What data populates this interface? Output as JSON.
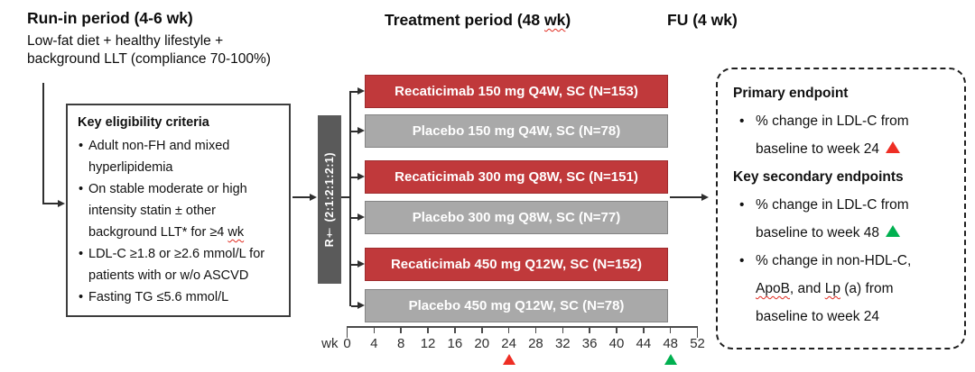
{
  "colors": {
    "treatment_bar": "#c0393b",
    "placebo_bar": "#a9a9a9",
    "randomization_box": "#5a5a5a",
    "week24_marker": "#ee2e24",
    "week48_marker": "#00b050",
    "spellcheck_squiggle": "#e02b20"
  },
  "run_in": {
    "title": "Run-in period (4-6 wk)",
    "subtitle": "Low-fat diet + healthy lifestyle +\nbackground LLT (compliance 70-100%)"
  },
  "treatment_header": {
    "pre": "Treatment period (48 ",
    "wk": "wk",
    "post": ")"
  },
  "fu_header": "FU (4 wk)",
  "eligibility": {
    "title": "Key eligibility criteria",
    "item1": "Adult non-FH and mixed\nhyperlipidemia",
    "item2_pre": "On stable moderate or high\nintensity statin ± other\nbackground LLT* for ≥4 ",
    "item2_wk": "wk",
    "item3": "LDL-C ≥1.8 or ≥2.6 mmol/L for\npatients with or w/o ASCVD",
    "item4": "Fasting TG ≤5.6 mmol/L"
  },
  "randomization": {
    "label": "R† (2:1:2:1:2:1)"
  },
  "arms": [
    {
      "label": "Recaticimab 150 mg Q4W, SC (N=153)",
      "type": "treatment"
    },
    {
      "label": "Placebo 150 mg Q4W, SC (N=78)",
      "type": "placebo"
    },
    {
      "label": "Recaticimab 300 mg Q8W, SC (N=151)",
      "type": "treatment"
    },
    {
      "label": "Placebo 300 mg Q8W, SC (N=77)",
      "type": "placebo"
    },
    {
      "label": "Recaticimab 450 mg Q12W, SC (N=152)",
      "type": "treatment"
    },
    {
      "label": "Placebo 450 mg Q12W, SC (N=78)",
      "type": "placebo"
    }
  ],
  "axis": {
    "unit": "wk",
    "ticks": [
      0,
      4,
      8,
      12,
      16,
      20,
      24,
      28,
      32,
      36,
      40,
      44,
      48,
      52
    ],
    "markers": [
      {
        "week": 24,
        "color": "#ee2e24",
        "name": "axis-marker-week24"
      },
      {
        "week": 48,
        "color": "#00b050",
        "name": "axis-marker-week48"
      }
    ]
  },
  "endpoints": {
    "primary_title": "Primary endpoint",
    "primary_item_pre": "% change in LDL-C from\nbaseline to week 24 ",
    "secondary_title": "Key secondary endpoints",
    "secondary_item1_pre": "% change in LDL-C from\nbaseline to week 48 ",
    "secondary_item2_p1": "% change in non-HDL-C,\n",
    "secondary_item2_sq1": "ApoB",
    "secondary_item2_p2": ", and ",
    "secondary_item2_sq2": "Lp",
    "secondary_item2_p3": " (a) from\nbaseline to week 24"
  }
}
